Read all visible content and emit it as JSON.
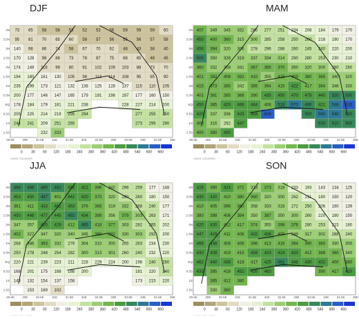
{
  "credit": "GrADS: COLA/IGES",
  "x_labels": [
    "29.5E",
    "30E",
    "30.5E",
    "31E",
    "31.5E",
    "32E",
    "32.5E",
    "33E",
    "33.5E",
    "34E",
    "34.5E",
    "35E"
  ],
  "y_labels": [
    "4N",
    "3.5N",
    "3N",
    "2.5N",
    "2N",
    "1.5N",
    "1N",
    "0.5N",
    "EQ",
    "0.5S",
    "1S",
    "1.5S"
  ],
  "colorbar": {
    "ticks": [
      0,
      30,
      60,
      120,
      180,
      240,
      300,
      360,
      420,
      480,
      540,
      600,
      660
    ],
    "colors": [
      "#9c8e5e",
      "#b3a57a",
      "#cdc39c",
      "#e2dcc4",
      "#f1f0e4",
      "#e6f2d2",
      "#c4e2a0",
      "#9cce74",
      "#74b650",
      "#4e9c42",
      "#38885a",
      "#2c7a96",
      "#2a5ec4",
      "#1a36d0"
    ]
  },
  "panels": [
    {
      "title": "DJF",
      "grid": [
        [
          73,
          65,
          58,
          58,
          53,
          52,
          53,
          56,
          59,
          59,
          59,
          60
        ],
        [
          95,
          81,
          70,
          65,
          60,
          58,
          57,
          56,
          55,
          56,
          57,
          58
        ],
        [
          140,
          98,
          86,
          74,
          58,
          67,
          70,
          62,
          48,
          43,
          38,
          40
        ],
        [
          170,
          128,
          98,
          88,
          73,
          78,
          87,
          75,
          88,
          65,
          48,
          45
        ],
        [
          174,
          149,
          118,
          99,
          80,
          91,
          102,
          109,
          103,
          88,
          73,
          70
        ],
        [
          194,
          180,
          161,
          130,
          105,
          98,
          113,
          114,
          108,
          95,
          95,
          90
        ],
        [
          235,
          199,
          173,
          121,
          132,
          138,
          125,
          128,
          137,
          115,
          110,
          105
        ],
        [
          200,
          177,
          146,
          147,
          165,
          179,
          191,
          198,
          197,
          177,
          160,
          150
        ],
        [
          178,
          184,
          179,
          181,
          221,
          238,
          null,
          null,
          228,
          227,
          214,
          200
        ],
        [
          205,
          225,
          214,
          219,
          255,
          294,
          null,
          null,
          null,
          277,
          255,
          250
        ],
        [
          244,
          241,
          209,
          251,
          265,
          null,
          null,
          null,
          null,
          273,
          295,
          290
        ],
        [
          null,
          null,
          232,
          333,
          null,
          null,
          null,
          null,
          null,
          null,
          null,
          null
        ]
      ]
    },
    {
      "title": "MAM",
      "grid": [
        [
          407,
          349,
          345,
          332,
          285,
          277,
          251,
          234,
          208,
          184,
          179,
          170
        ],
        [
          450,
          400,
          360,
          315,
          300,
          285,
          258,
          250,
          260,
          218,
          190,
          170
        ],
        [
          456,
          394,
          320,
          306,
          278,
          296,
          288,
          260,
          245,
          240,
          220,
          200
        ],
        [
          500,
          350,
          328,
          319,
          337,
          334,
          314,
          290,
          280,
          253,
          230,
          210
        ],
        [
          360,
          332,
          358,
          341,
          367,
          385,
          370,
          350,
          320,
          300,
          280,
          260
        ],
        [
          401,
          382,
          408,
          392,
          410,
          355,
          415,
          400,
          380,
          365,
          340,
          320
        ],
        [
          415,
          373,
          385,
          342,
          385,
          394,
          415,
          422,
          417,
          364,
          346,
          330
        ],
        [
          401,
          381,
          385,
          368,
          390,
          430,
          450,
          470,
          479,
          440,
          520,
          500
        ],
        [
          450,
          385,
          420,
          466,
          444,
          406,
          519,
          570,
          490,
          421,
          546,
          615
        ],
        [
          420,
          337,
          336,
          423,
          454,
          628,
          null,
          null,
          500,
          560,
          540,
          520
        ],
        [
          400,
          316,
          292,
          447,
          null,
          null,
          null,
          null,
          null,
          530,
          510,
          500
        ],
        [
          400,
          380,
          430,
          null,
          null,
          null,
          null,
          null,
          null,
          null,
          null,
          null
        ]
      ]
    },
    {
      "title": "JJA",
      "grid": [
        [
          486,
          488,
          480,
          482,
          468,
          421,
          396,
          342,
          296,
          259,
          177,
          148
        ],
        [
          453,
          450,
          487,
          401,
          442,
          420,
          370,
          320,
          290,
          260,
          180,
          150
        ],
        [
          381,
          411,
          433,
          462,
          453,
          376,
          365,
          319,
          332,
          268,
          240,
          177
        ],
        [
          450,
          448,
          477,
          445,
          492,
          434,
          399,
          356,
          379,
          303,
          263,
          171
        ],
        [
          347,
          357,
          420,
          429,
          412,
          485,
          418,
          377,
          303,
          282,
          265,
          202
        ],
        [
          402,
          327,
          347,
          320,
          340,
          345,
          380,
          382,
          330,
          303,
          292,
          200
        ],
        [
          268,
          346,
          363,
          332,
          279,
          304,
          310,
          300,
          265,
          263,
          234,
          230
        ],
        [
          250,
          278,
          248,
          254,
          282,
          300,
          313,
          301,
          260,
          240,
          232,
          220
        ],
        [
          220,
          221,
          239,
          223,
          211,
          228,
          229,
          224,
          200,
          198,
          240,
          260
        ],
        [
          168,
          201,
          175,
          188,
          188,
          200,
          null,
          null,
          null,
          181,
          220,
          240
        ],
        [
          143,
          132,
          154,
          137,
          158,
          null,
          null,
          null,
          null,
          173,
          215,
          220
        ],
        [
          null,
          153,
          169,
          102,
          null,
          null,
          null,
          null,
          null,
          null,
          null,
          null
        ]
      ]
    },
    {
      "title": "SON",
      "grid": [
        [
          426,
          390,
          424,
          372,
          313,
          373,
          318,
          233,
          193,
          143,
          134,
          125
        ],
        [
          430,
          420,
          410,
          380,
          360,
          320,
          300,
          262,
          211,
          180,
          150,
          120
        ],
        [
          410,
          405,
          396,
          360,
          358,
          333,
          318,
          272,
          250,
          206,
          160,
          139
        ],
        [
          380,
          398,
          406,
          384,
          350,
          387,
          350,
          300,
          260,
          220,
          180,
          150
        ],
        [
          420,
          430,
          412,
          417,
          374,
          355,
          398,
          376,
          280,
          253,
          215,
          180
        ],
        [
          447,
          429,
          411,
          408,
          432,
          436,
          400,
          349,
          317,
          302,
          288,
          240
        ],
        [
          466,
          448,
          408,
          408,
          396,
          413,
          416,
          394,
          390,
          360,
          330,
          300
        ],
        [
          430,
          439,
          419,
          415,
          434,
          423,
          424,
          420,
          412,
          388,
          360,
          340
        ],
        [
          462,
          440,
          436,
          418,
          417,
          425,
          481,
          448,
          430,
          432,
          400,
          380
        ],
        [
          435,
          395,
          418,
          452,
          420,
          463,
          null,
          null,
          null,
          390,
          417,
          420
        ],
        [
          null,
          385,
          412,
          380,
          null,
          null,
          null,
          null,
          null,
          null,
          null,
          null
        ],
        [
          null,
          330,
          360,
          null,
          null,
          null,
          null,
          null,
          null,
          null,
          null,
          null
        ]
      ]
    }
  ]
}
